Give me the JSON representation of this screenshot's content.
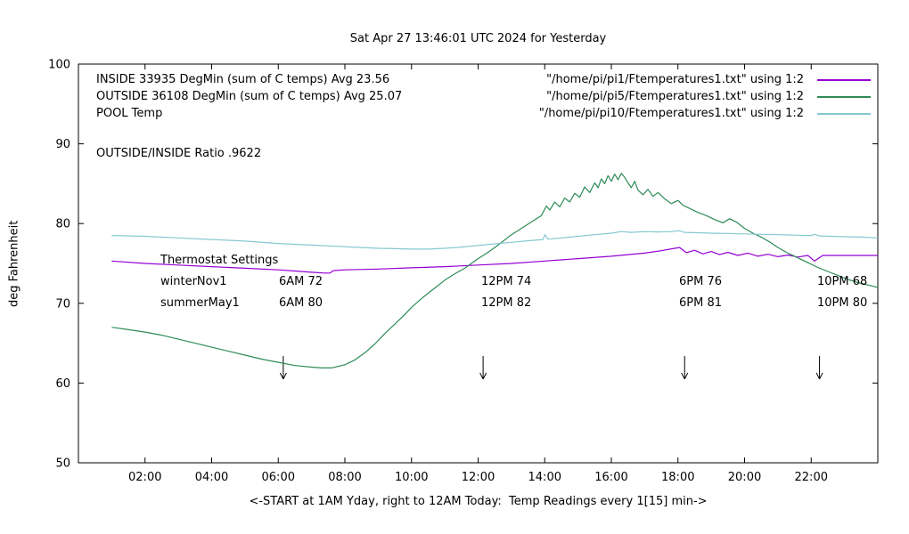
{
  "ratio_text": "OUTSIDE/INSIDE Ratio .9622",
  "thermostat": {
    "heading": "Thermostat Settings",
    "rows": [
      [
        "winterNov1",
        "6AM 72",
        "12PM 74",
        "6PM 76",
        "10PM 68"
      ],
      [
        "summerMay1",
        "6AM 80",
        "12PM 82",
        "6PM 81",
        "10PM 80"
      ]
    ]
  },
  "chart_data": {
    "type": "line",
    "title": "Sat Apr 27 13:46:01 UTC 2024 for Yesterday",
    "xlabel": "<-START at 1AM Yday, right to 12AM Today:  Temp Readings every 1[15] min->",
    "ylabel": "deg Fahrenheit",
    "xlim": [
      0,
      24
    ],
    "ylim": [
      50,
      100
    ],
    "grid": false,
    "legend_position": "top-left-inside",
    "xticks": [
      {
        "v": 2,
        "label": "02:00"
      },
      {
        "v": 4,
        "label": "04:00"
      },
      {
        "v": 6,
        "label": "06:00"
      },
      {
        "v": 8,
        "label": "08:00"
      },
      {
        "v": 10,
        "label": "10:00"
      },
      {
        "v": 12,
        "label": "12:00"
      },
      {
        "v": 14,
        "label": "14:00"
      },
      {
        "v": 16,
        "label": "16:00"
      },
      {
        "v": 18,
        "label": "18:00"
      },
      {
        "v": 20,
        "label": "20:00"
      },
      {
        "v": 22,
        "label": "22:00"
      }
    ],
    "yticks": [
      {
        "v": 50,
        "label": "50"
      },
      {
        "v": 60,
        "label": "60"
      },
      {
        "v": 70,
        "label": "70"
      },
      {
        "v": 80,
        "label": "80"
      },
      {
        "v": 90,
        "label": "90"
      },
      {
        "v": 100,
        "label": "100"
      }
    ],
    "legend": [
      {
        "label": "INSIDE 33935 DegMin (sum of C temps) Avg 23.56",
        "file": "\"/home/pi/pi1/Ftemperatures1.txt\" using 1:2"
      },
      {
        "label": "OUTSIDE 36108 DegMin (sum of C temps) Avg 25.07",
        "file": "\"/home/pi/pi5/Ftemperatures1.txt\" using 1:2"
      },
      {
        "label": "POOL Temp",
        "file": "\"/home/pi/pi10/Ftemperatures1.txt\" using 1:2"
      }
    ],
    "arrows": [
      {
        "x": 6.15,
        "top": 63.4,
        "tip": 60.5
      },
      {
        "x": 12.15,
        "top": 63.4,
        "tip": 60.5
      },
      {
        "x": 18.2,
        "top": 63.4,
        "tip": 60.5
      },
      {
        "x": 22.25,
        "top": 63.4,
        "tip": 60.5
      }
    ],
    "series": [
      {
        "name": "INSIDE",
        "color": "#9400d3",
        "points": [
          [
            1,
            75.3
          ],
          [
            2,
            75.0
          ],
          [
            3,
            74.8
          ],
          [
            4,
            74.6
          ],
          [
            5,
            74.4
          ],
          [
            6,
            74.2
          ],
          [
            6.5,
            74.05
          ],
          [
            7,
            73.9
          ],
          [
            7.4,
            73.8
          ],
          [
            7.55,
            73.8
          ],
          [
            7.65,
            74.1
          ],
          [
            8,
            74.2
          ],
          [
            9,
            74.3
          ],
          [
            10,
            74.45
          ],
          [
            11,
            74.6
          ],
          [
            12,
            74.8
          ],
          [
            13,
            75.0
          ],
          [
            14,
            75.3
          ],
          [
            15,
            75.6
          ],
          [
            16,
            75.9
          ],
          [
            16.5,
            76.1
          ],
          [
            17,
            76.3
          ],
          [
            17.5,
            76.6
          ],
          [
            17.9,
            76.9
          ],
          [
            18.05,
            77.0
          ],
          [
            18.25,
            76.35
          ],
          [
            18.5,
            76.65
          ],
          [
            18.75,
            76.2
          ],
          [
            19,
            76.5
          ],
          [
            19.25,
            76.1
          ],
          [
            19.5,
            76.4
          ],
          [
            19.8,
            76.0
          ],
          [
            20.1,
            76.3
          ],
          [
            20.4,
            75.9
          ],
          [
            20.7,
            76.15
          ],
          [
            21,
            75.85
          ],
          [
            21.3,
            76.05
          ],
          [
            21.6,
            75.8
          ],
          [
            21.9,
            76.0
          ],
          [
            22.1,
            75.3
          ],
          [
            22.35,
            76.0
          ],
          [
            23,
            76.0
          ],
          [
            24,
            76.0
          ]
        ]
      },
      {
        "name": "OUTSIDE",
        "color": "#2e8b57",
        "points": [
          [
            1,
            67.0
          ],
          [
            1.5,
            66.7
          ],
          [
            2,
            66.4
          ],
          [
            2.5,
            66.0
          ],
          [
            3,
            65.5
          ],
          [
            3.5,
            65.0
          ],
          [
            4,
            64.5
          ],
          [
            4.5,
            64.0
          ],
          [
            5,
            63.5
          ],
          [
            5.5,
            63.0
          ],
          [
            6,
            62.6
          ],
          [
            6.5,
            62.2
          ],
          [
            7,
            62.0
          ],
          [
            7.3,
            61.9
          ],
          [
            7.6,
            61.9
          ],
          [
            8,
            62.3
          ],
          [
            8.3,
            62.9
          ],
          [
            8.6,
            63.8
          ],
          [
            8.9,
            64.9
          ],
          [
            9.2,
            66.2
          ],
          [
            9.5,
            67.4
          ],
          [
            9.8,
            68.6
          ],
          [
            10,
            69.5
          ],
          [
            10.3,
            70.6
          ],
          [
            10.6,
            71.6
          ],
          [
            11,
            72.9
          ],
          [
            11.3,
            73.7
          ],
          [
            11.6,
            74.4
          ],
          [
            12,
            75.6
          ],
          [
            12.3,
            76.4
          ],
          [
            12.6,
            77.3
          ],
          [
            13,
            78.6
          ],
          [
            13.3,
            79.4
          ],
          [
            13.6,
            80.2
          ],
          [
            13.9,
            81.0
          ],
          [
            14.05,
            82.2
          ],
          [
            14.15,
            81.7
          ],
          [
            14.3,
            82.7
          ],
          [
            14.45,
            82.1
          ],
          [
            14.6,
            83.2
          ],
          [
            14.75,
            82.7
          ],
          [
            14.9,
            83.8
          ],
          [
            15.05,
            83.3
          ],
          [
            15.2,
            84.6
          ],
          [
            15.35,
            83.9
          ],
          [
            15.5,
            85.1
          ],
          [
            15.6,
            84.5
          ],
          [
            15.7,
            85.6
          ],
          [
            15.8,
            85.0
          ],
          [
            15.9,
            86.0
          ],
          [
            16,
            85.3
          ],
          [
            16.1,
            86.2
          ],
          [
            16.2,
            85.5
          ],
          [
            16.3,
            86.3
          ],
          [
            16.4,
            85.8
          ],
          [
            16.5,
            85.1
          ],
          [
            16.6,
            84.5
          ],
          [
            16.7,
            85.3
          ],
          [
            16.8,
            84.2
          ],
          [
            16.95,
            83.6
          ],
          [
            17.1,
            84.3
          ],
          [
            17.25,
            83.4
          ],
          [
            17.4,
            83.9
          ],
          [
            17.6,
            83.1
          ],
          [
            17.8,
            82.5
          ],
          [
            18,
            82.9
          ],
          [
            18.15,
            82.3
          ],
          [
            18.35,
            81.9
          ],
          [
            18.6,
            81.4
          ],
          [
            18.85,
            81.0
          ],
          [
            19.1,
            80.5
          ],
          [
            19.35,
            80.1
          ],
          [
            19.55,
            80.6
          ],
          [
            19.75,
            80.2
          ],
          [
            20,
            79.4
          ],
          [
            20.25,
            78.8
          ],
          [
            20.5,
            78.3
          ],
          [
            20.75,
            77.7
          ],
          [
            21,
            77.0
          ],
          [
            21.3,
            76.3
          ],
          [
            21.6,
            75.7
          ],
          [
            21.9,
            75.1
          ],
          [
            22.2,
            74.5
          ],
          [
            22.5,
            74.0
          ],
          [
            22.8,
            73.5
          ],
          [
            23.1,
            73.0
          ],
          [
            23.4,
            72.6
          ],
          [
            23.7,
            72.3
          ],
          [
            24,
            72.0
          ]
        ]
      },
      {
        "name": "POOL",
        "color": "#85c8d2",
        "points": [
          [
            1,
            78.5
          ],
          [
            2,
            78.4
          ],
          [
            3,
            78.2
          ],
          [
            4,
            78.0
          ],
          [
            5,
            77.8
          ],
          [
            6,
            77.5
          ],
          [
            7,
            77.3
          ],
          [
            8,
            77.1
          ],
          [
            9,
            76.9
          ],
          [
            9.5,
            76.85
          ],
          [
            10,
            76.8
          ],
          [
            10.5,
            76.8
          ],
          [
            11,
            76.9
          ],
          [
            11.5,
            77.05
          ],
          [
            12,
            77.25
          ],
          [
            12.5,
            77.45
          ],
          [
            13,
            77.65
          ],
          [
            13.5,
            77.85
          ],
          [
            13.95,
            78.0
          ],
          [
            14.0,
            78.6
          ],
          [
            14.1,
            78.05
          ],
          [
            14.5,
            78.2
          ],
          [
            15,
            78.4
          ],
          [
            15.5,
            78.6
          ],
          [
            16,
            78.8
          ],
          [
            16.3,
            79.0
          ],
          [
            16.6,
            78.9
          ],
          [
            17,
            79.0
          ],
          [
            17.4,
            78.95
          ],
          [
            17.8,
            79.0
          ],
          [
            18.05,
            79.1
          ],
          [
            18.2,
            78.9
          ],
          [
            18.6,
            78.85
          ],
          [
            19,
            78.8
          ],
          [
            19.5,
            78.75
          ],
          [
            20,
            78.7
          ],
          [
            20.5,
            78.65
          ],
          [
            21,
            78.6
          ],
          [
            21.5,
            78.55
          ],
          [
            22,
            78.5
          ],
          [
            22.1,
            78.65
          ],
          [
            22.25,
            78.45
          ],
          [
            22.6,
            78.4
          ],
          [
            23,
            78.35
          ],
          [
            23.5,
            78.3
          ],
          [
            24,
            78.2
          ]
        ]
      }
    ]
  }
}
